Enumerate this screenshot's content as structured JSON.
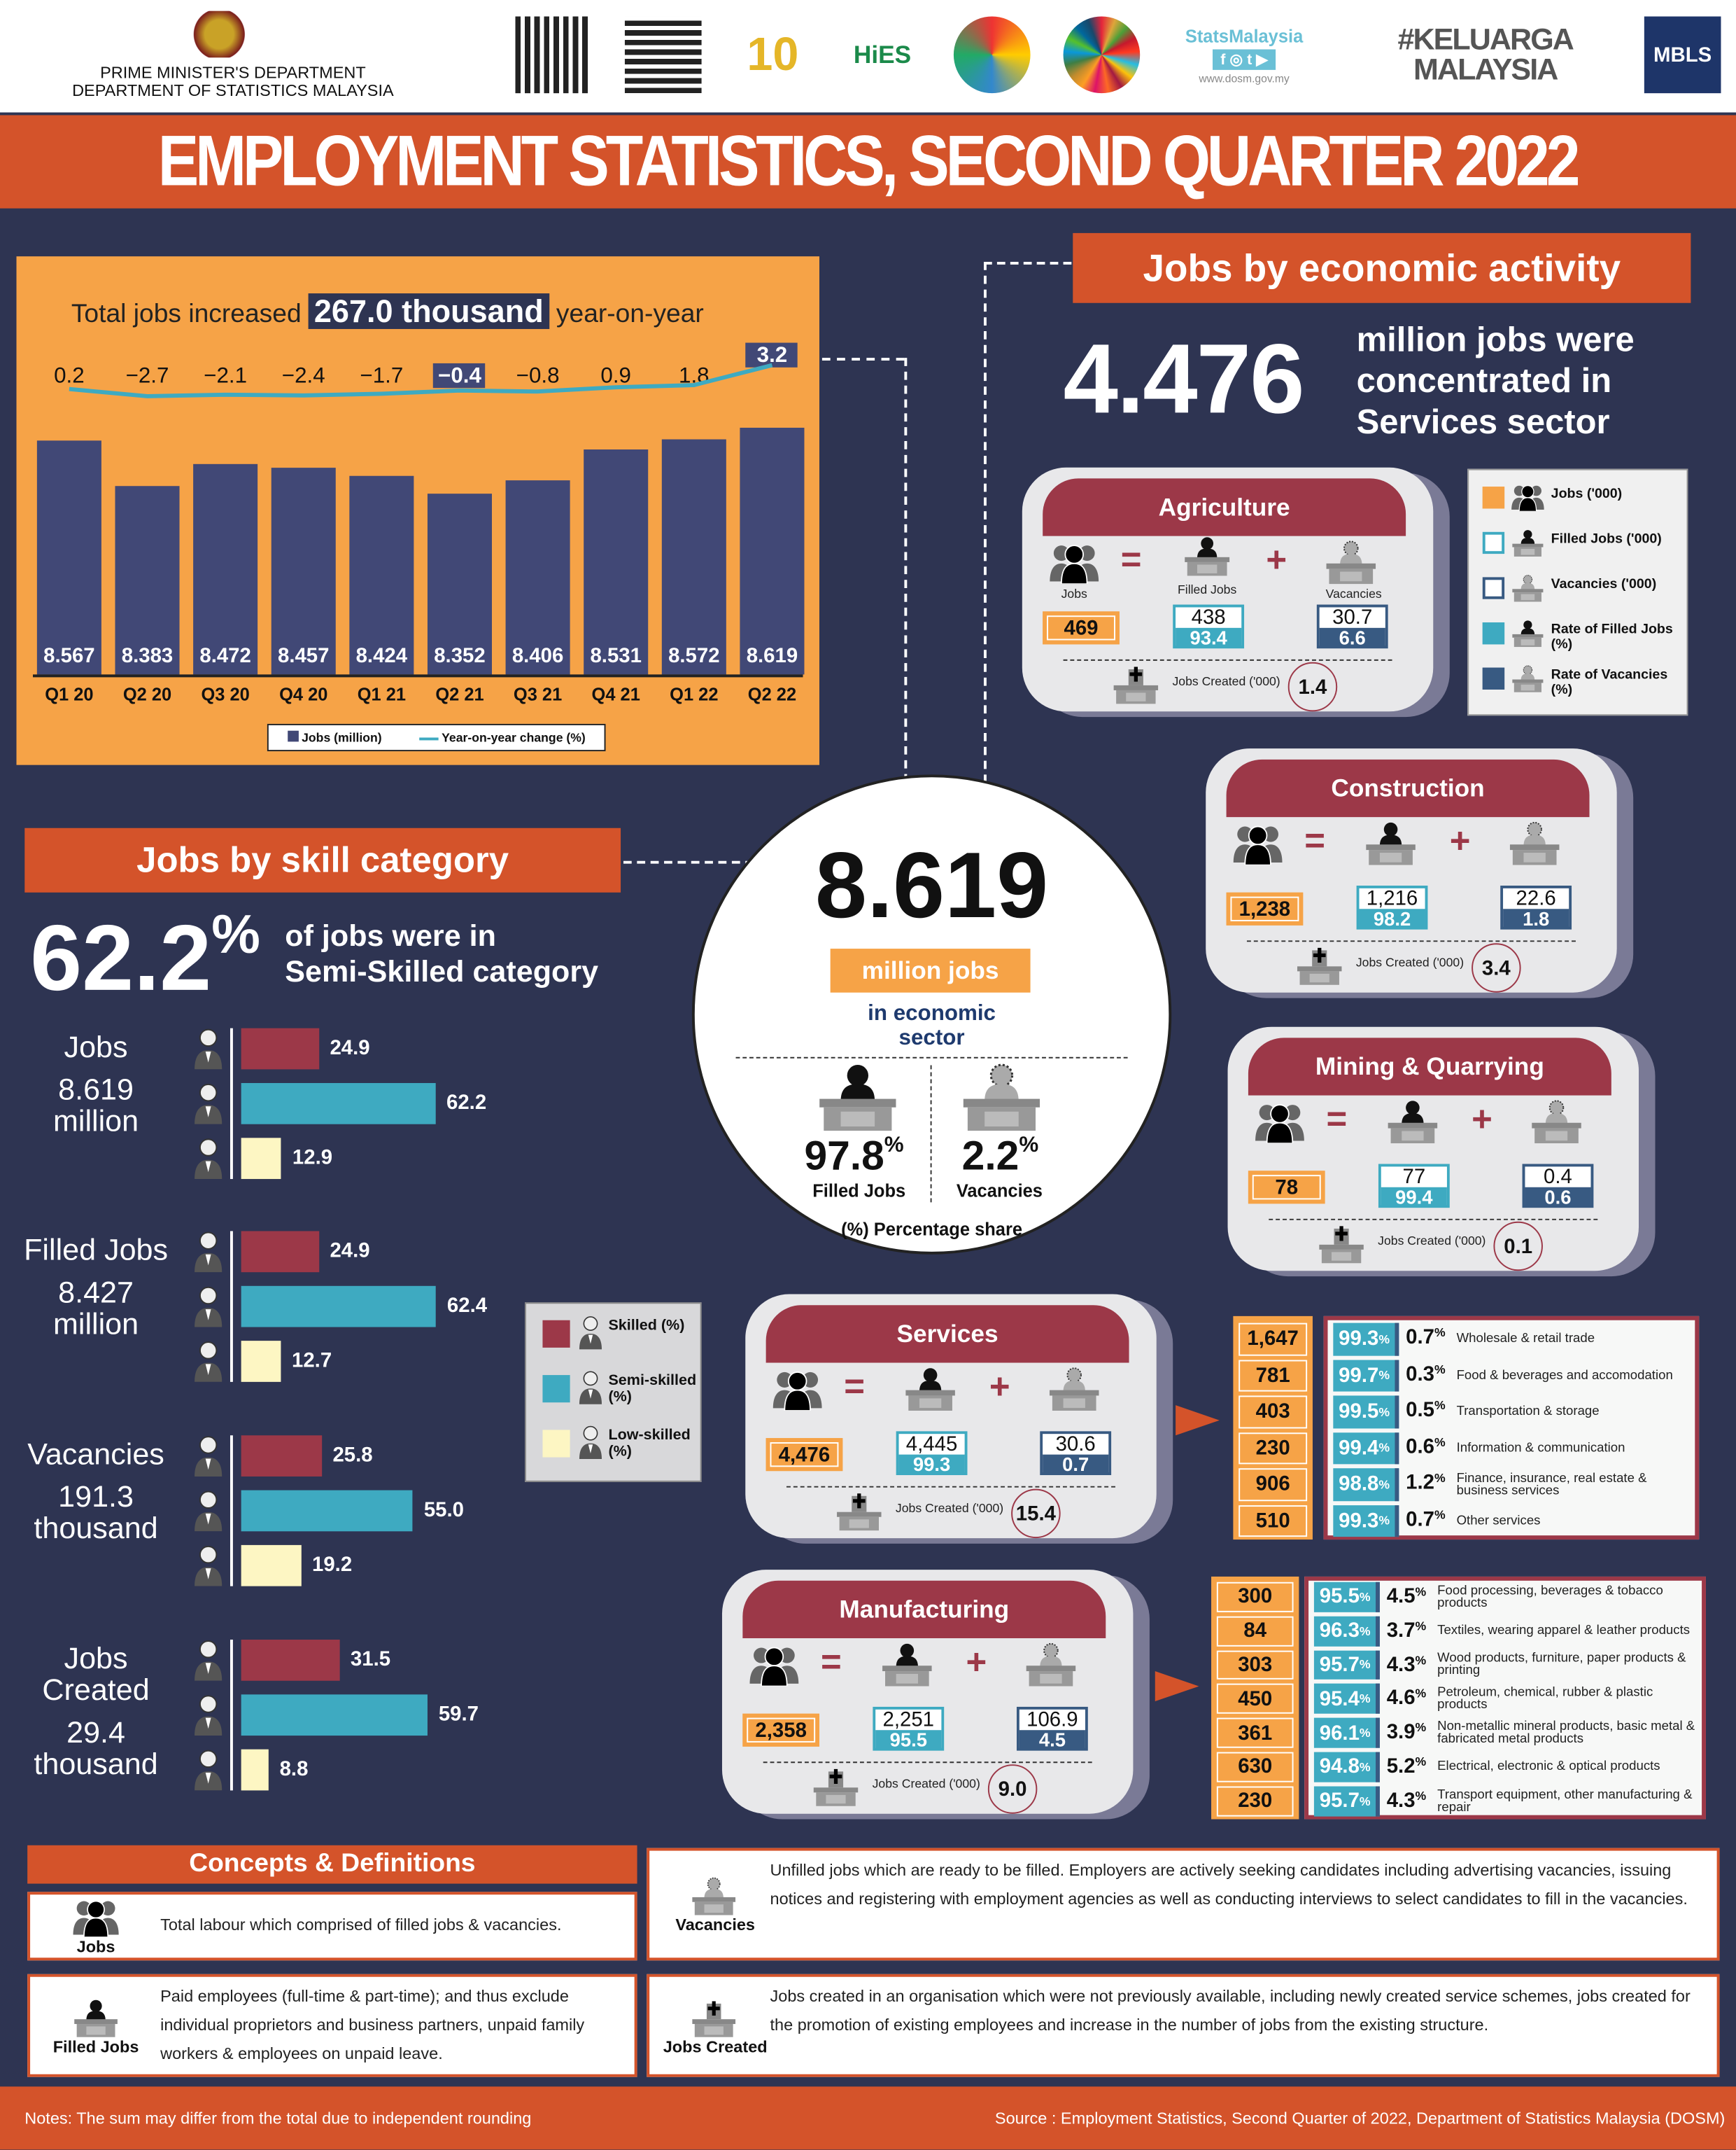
{
  "header": {
    "dept_line1": "PRIME MINISTER'S DEPARTMENT",
    "dept_line2": "DEPARTMENT OF STATISTICS MALAYSIA",
    "logos": [
      "QR code",
      "QR code",
      "10 ILLISM",
      "HIES BA 2022",
      "logo",
      "SUSTAINABLE DEVELOPMENT GOALS MALAYSIA",
      "StatsMalaysia www.dosm.gov.my",
      "#KELUARGA MALAYSIA",
      "MBLS"
    ],
    "stats_brand": "StatsMalaysia",
    "stats_url": "www.dosm.gov.my",
    "keluarga": "#KELUARGA MALAYSIA",
    "mbls": "MBLS"
  },
  "title": "EMPLOYMENT STATISTICS, SECOND QUARTER 2022",
  "colors": {
    "orange": "#d4532a",
    "light_orange": "#f6a347",
    "navy": "#2e3452",
    "maroon": "#9c3848",
    "teal": "#3eaac1",
    "steel": "#385a82",
    "cream": "#fdf6c3"
  },
  "chart_data": {
    "type": "bar",
    "title_prefix": "Total jobs increased",
    "title_highlight": "267.0 thousand",
    "title_suffix": "year-on-year",
    "categories": [
      "Q1 20",
      "Q2 20",
      "Q3 20",
      "Q4 20",
      "Q1 21",
      "Q2 21",
      "Q3 21",
      "Q4 21",
      "Q1 22",
      "Q2 22"
    ],
    "series": [
      {
        "name": "Jobs (million)",
        "type": "bar",
        "values": [
          8.567,
          8.383,
          8.472,
          8.457,
          8.424,
          8.352,
          8.406,
          8.531,
          8.572,
          8.619
        ],
        "labels": [
          "8.567",
          "8.383",
          "8.472",
          "8.457",
          "8.424",
          "8.352",
          "8.406",
          "8.531",
          "8.572",
          "8.619"
        ]
      },
      {
        "name": "Year-on-year change (%)",
        "type": "line",
        "values": [
          0.2,
          -2.7,
          -2.1,
          -2.4,
          -1.7,
          -0.4,
          -0.8,
          0.9,
          1.8,
          3.2
        ],
        "labels": [
          "0.2",
          "−2.7",
          "−2.1",
          "−2.4",
          "−1.7",
          "−0.4",
          "−0.8",
          "0.9",
          "1.8",
          "3.2"
        ]
      }
    ],
    "ylim": [
      7.62,
      8.7
    ],
    "grid": false,
    "legend": "bottom"
  },
  "activity": {
    "heading": "Jobs by economic activity",
    "big": "4.476",
    "big_text": "million jobs were concentrated in Services sector",
    "labels": {
      "jobs": "Jobs",
      "filled": "Filled Jobs",
      "vac": "Vacancies",
      "created": "Jobs Created ('000)"
    },
    "sectors": [
      {
        "name": "Agriculture",
        "jobs": "469",
        "filled": "438",
        "filled_rate": "93.4",
        "vac": "30.7",
        "vac_rate": "6.6",
        "created": "1.4"
      },
      {
        "name": "Construction",
        "jobs": "1,238",
        "filled": "1,216",
        "filled_rate": "98.2",
        "vac": "22.6",
        "vac_rate": "1.8",
        "created": "3.4"
      },
      {
        "name": "Mining & Quarrying",
        "jobs": "78",
        "filled": "77",
        "filled_rate": "99.4",
        "vac": "0.4",
        "vac_rate": "0.6",
        "created": "0.1"
      },
      {
        "name": "Services",
        "jobs": "4,476",
        "filled": "4,445",
        "filled_rate": "99.3",
        "vac": "30.6",
        "vac_rate": "0.7",
        "created": "15.4"
      },
      {
        "name": "Manufacturing",
        "jobs": "2,358",
        "filled": "2,251",
        "filled_rate": "95.5",
        "vac": "106.9",
        "vac_rate": "4.5",
        "created": "9.0"
      }
    ],
    "legend": [
      {
        "label": "Jobs ('000)"
      },
      {
        "label": "Filled Jobs ('000)"
      },
      {
        "label": "Vacancies ('000)"
      },
      {
        "label": "Rate of Filled Jobs (%)"
      },
      {
        "label": "Rate of Vacancies (%)"
      }
    ],
    "services_breakdown": [
      {
        "jobs": "1,647",
        "filled": "99.3",
        "vac": "0.7",
        "name": "Wholesale & retail trade"
      },
      {
        "jobs": "781",
        "filled": "99.7",
        "vac": "0.3",
        "name": "Food & beverages and accomodation"
      },
      {
        "jobs": "403",
        "filled": "99.5",
        "vac": "0.5",
        "name": "Transportation & storage"
      },
      {
        "jobs": "230",
        "filled": "99.4",
        "vac": "0.6",
        "name": "Information & communication"
      },
      {
        "jobs": "906",
        "filled": "98.8",
        "vac": "1.2",
        "name": "Finance, insurance, real estate & business services"
      },
      {
        "jobs": "510",
        "filled": "99.3",
        "vac": "0.7",
        "name": "Other services"
      }
    ],
    "manufacturing_breakdown": [
      {
        "jobs": "300",
        "filled": "95.5",
        "vac": "4.5",
        "name": "Food processing, beverages & tobacco products"
      },
      {
        "jobs": "84",
        "filled": "96.3",
        "vac": "3.7",
        "name": "Textiles, wearing apparel & leather products"
      },
      {
        "jobs": "303",
        "filled": "95.7",
        "vac": "4.3",
        "name": "Wood products, furniture, paper products & printing"
      },
      {
        "jobs": "450",
        "filled": "95.4",
        "vac": "4.6",
        "name": "Petroleum, chemical, rubber & plastic products"
      },
      {
        "jobs": "361",
        "filled": "96.1",
        "vac": "3.9",
        "name": "Non-metallic mineral products, basic metal & fabricated metal products"
      },
      {
        "jobs": "630",
        "filled": "94.8",
        "vac": "5.2",
        "name": "Electrical, electronic & optical products"
      },
      {
        "jobs": "230",
        "filled": "95.7",
        "vac": "4.3",
        "name": "Transport equipment, other manufacturing & repair"
      }
    ],
    "pct": "%"
  },
  "center": {
    "value": "8.619",
    "unit": "million jobs",
    "sub": "in economic sector",
    "filled_pct": "97.8",
    "filled_label": "Filled Jobs",
    "vac_pct": "2.2",
    "vac_label": "Vacancies",
    "pct": "%",
    "note": "(%) Percentage share"
  },
  "skill": {
    "heading": "Jobs by skill category",
    "big": "62.2",
    "pct": "%",
    "big_text1": "of jobs were in",
    "big_text2": "Semi-Skilled category",
    "groups": [
      {
        "title": "Jobs",
        "sub": "8.619 million",
        "values": [
          24.9,
          62.2,
          12.9
        ],
        "labels": [
          "24.9",
          "62.2",
          "12.9"
        ]
      },
      {
        "title": "Filled Jobs",
        "sub": "8.427 million",
        "values": [
          24.9,
          62.4,
          12.7
        ],
        "labels": [
          "24.9",
          "62.4",
          "12.7"
        ]
      },
      {
        "title": "Vacancies",
        "sub": "191.3 thousand",
        "values": [
          25.8,
          55.0,
          19.2
        ],
        "labels": [
          "25.8",
          "55.0",
          "19.2"
        ]
      },
      {
        "title": "Jobs Created",
        "sub": "29.4 thousand",
        "values": [
          31.5,
          59.7,
          8.8
        ],
        "labels": [
          "31.5",
          "59.7",
          "8.8"
        ]
      }
    ],
    "legend": [
      "Skilled (%)",
      "Semi-skilled (%)",
      "Low-skilled (%)"
    ]
  },
  "concepts": {
    "heading": "Concepts & Definitions",
    "items": [
      {
        "term": "Jobs",
        "text": "Total labour which comprised of filled jobs & vacancies."
      },
      {
        "term": "Filled Jobs",
        "text": "Paid employees (full-time & part-time); and thus exclude individual proprietors and business partners, unpaid family workers & employees on unpaid leave."
      },
      {
        "term": "Vacancies",
        "text": "Unfilled jobs which are ready to be filled. Employers are actively seeking candidates including advertising vacancies, issuing notices and registering with employment agencies as well as conducting interviews to select candidates to fill in the vacancies."
      },
      {
        "term": "Jobs Created",
        "text": "Jobs created in an organisation which were not previously available, including newly created service schemes, jobs created for the promotion of existing employees and increase in the number of jobs from the existing structure."
      }
    ]
  },
  "footer": {
    "note": "Notes: The sum may differ from the total due to independent rounding",
    "source": "Source : Employment Statistics, Second Quarter of 2022, Department of Statistics Malaysia (DOSM)"
  }
}
